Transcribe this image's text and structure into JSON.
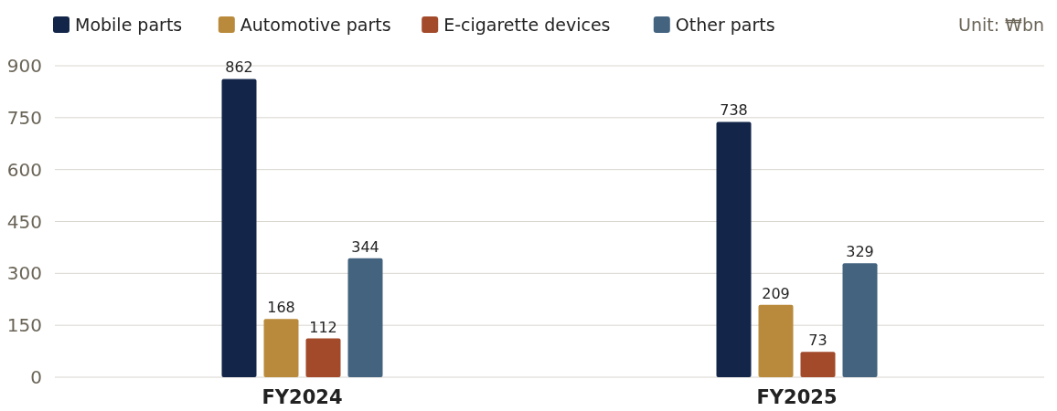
{
  "chart_data": {
    "type": "bar",
    "categories": [
      "FY2024",
      "FY2025"
    ],
    "series": [
      {
        "name": "Mobile parts",
        "color": "#13264a",
        "values": [
          862,
          738
        ]
      },
      {
        "name": "Automotive parts",
        "color": "#b98a3b",
        "values": [
          168,
          209
        ]
      },
      {
        "name": "E-cigarette devices",
        "color": "#a24a2a",
        "values": [
          112,
          73
        ]
      },
      {
        "name": "Other parts",
        "color": "#43637f",
        "values": [
          344,
          329
        ]
      }
    ],
    "ylim": [
      0,
      900
    ],
    "yticks": [
      0,
      150,
      300,
      450,
      600,
      750,
      900
    ],
    "grid": "y",
    "legend": "top left",
    "data_labels": true,
    "annotations": [
      "Unit: ₩bn"
    ]
  }
}
